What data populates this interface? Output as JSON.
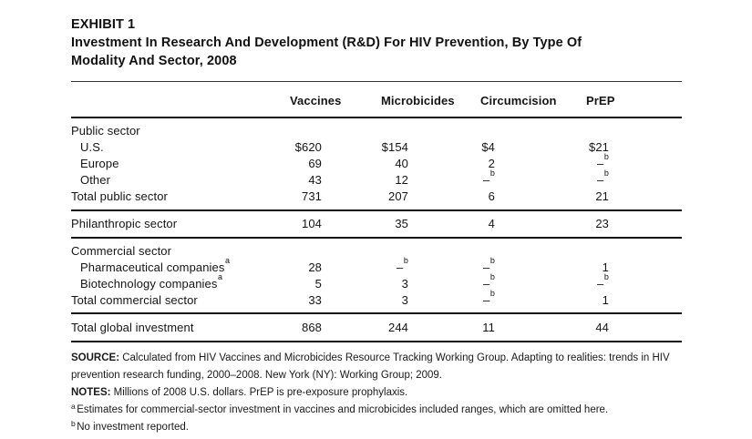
{
  "exhibit": {
    "label": "EXHIBIT 1",
    "title_line1": "Investment In Research And Development (R&D) For HIV Prevention, By Type Of",
    "title_line2": "Modality And Sector, 2008"
  },
  "table": {
    "columns": [
      "Vaccines",
      "Microbicides",
      "Circumcision",
      "PrEP"
    ],
    "sections": [
      {
        "rows": [
          {
            "style": "group",
            "label": "Public sector",
            "cells": [
              null,
              null,
              null,
              null
            ]
          },
          {
            "style": "indent",
            "label": "U.S.",
            "cells": [
              {
                "v": "$620"
              },
              {
                "v": "$154"
              },
              {
                "v": "$4"
              },
              {
                "v": "$21"
              }
            ]
          },
          {
            "style": "indent",
            "label": "Europe",
            "cells": [
              {
                "v": "69"
              },
              {
                "v": "40"
              },
              {
                "v": "2"
              },
              {
                "v": "–",
                "sup": "b"
              }
            ]
          },
          {
            "style": "indent",
            "label": "Other",
            "cells": [
              {
                "v": "43"
              },
              {
                "v": "12"
              },
              {
                "v": "–",
                "sup": "b"
              },
              {
                "v": "–",
                "sup": "b"
              }
            ]
          },
          {
            "style": "total",
            "label": "Total public sector",
            "cells": [
              {
                "v": "731"
              },
              {
                "v": "207"
              },
              {
                "v": "6"
              },
              {
                "v": "21"
              }
            ]
          }
        ]
      },
      {
        "rows": [
          {
            "style": "total",
            "label": "Philanthropic sector",
            "cells": [
              {
                "v": "104"
              },
              {
                "v": "35"
              },
              {
                "v": "4"
              },
              {
                "v": "23"
              }
            ]
          }
        ]
      },
      {
        "rows": [
          {
            "style": "group",
            "label": "Commercial sector",
            "cells": [
              null,
              null,
              null,
              null
            ]
          },
          {
            "style": "indent",
            "label": "Pharmaceutical companies",
            "label_sup": "a",
            "cells": [
              {
                "v": "28"
              },
              {
                "v": "–",
                "sup": "b"
              },
              {
                "v": "–",
                "sup": "b"
              },
              {
                "v": "1"
              }
            ]
          },
          {
            "style": "indent",
            "label": "Biotechnology companies",
            "label_sup": "a",
            "cells": [
              {
                "v": "5"
              },
              {
                "v": "3"
              },
              {
                "v": "–",
                "sup": "b"
              },
              {
                "v": "–",
                "sup": "b"
              }
            ]
          },
          {
            "style": "total",
            "label": "Total commercial sector",
            "cells": [
              {
                "v": "33"
              },
              {
                "v": "3"
              },
              {
                "v": "–",
                "sup": "b"
              },
              {
                "v": "1"
              }
            ]
          }
        ]
      },
      {
        "rows": [
          {
            "style": "total",
            "label": "Total global investment",
            "cells": [
              {
                "v": "868"
              },
              {
                "v": "244"
              },
              {
                "v": "11"
              },
              {
                "v": "44"
              }
            ]
          }
        ]
      }
    ]
  },
  "footer": {
    "source_label": "SOURCE:",
    "source_text": "Calculated from HIV Vaccines and Microbicides Resource Tracking Working Group. Adapting to realities: trends in HIV prevention research funding, 2000–2008. New York (NY): Working Group; 2009.",
    "notes_label": "NOTES:",
    "notes_text": "Millions of 2008 U.S. dollars. PrEP is pre-exposure prophylaxis.",
    "footnotes": [
      {
        "marker": "a",
        "text": "Estimates for commercial-sector investment in vaccines and microbicides included ranges, which are omitted here."
      },
      {
        "marker": "b",
        "text": "No investment reported."
      }
    ]
  }
}
